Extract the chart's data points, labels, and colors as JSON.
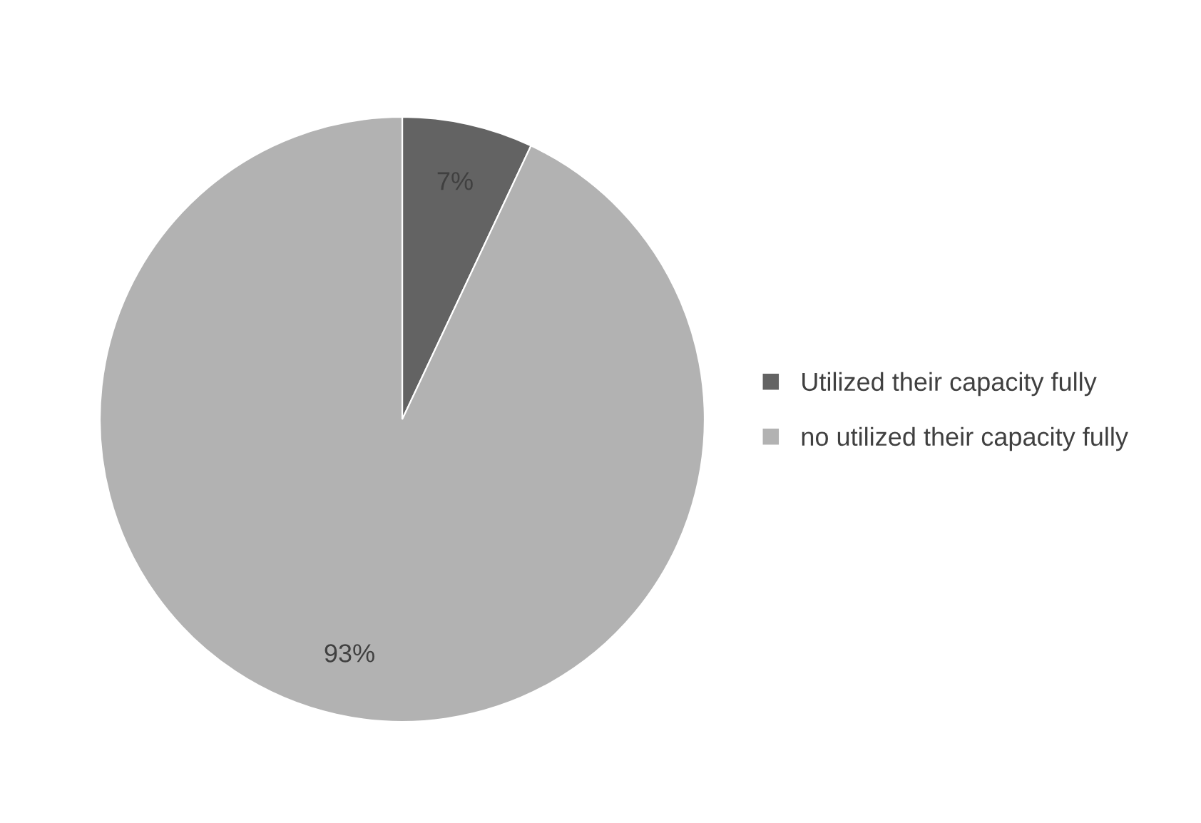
{
  "chart_data": {
    "type": "pie",
    "categories": [
      "Utilized their capacity fully",
      "no utilized their capacity fully"
    ],
    "values": [
      7,
      93
    ],
    "colors": [
      "#636363",
      "#b2b2b2"
    ],
    "value_labels": [
      "7%",
      "93%"
    ],
    "legend": "right"
  }
}
